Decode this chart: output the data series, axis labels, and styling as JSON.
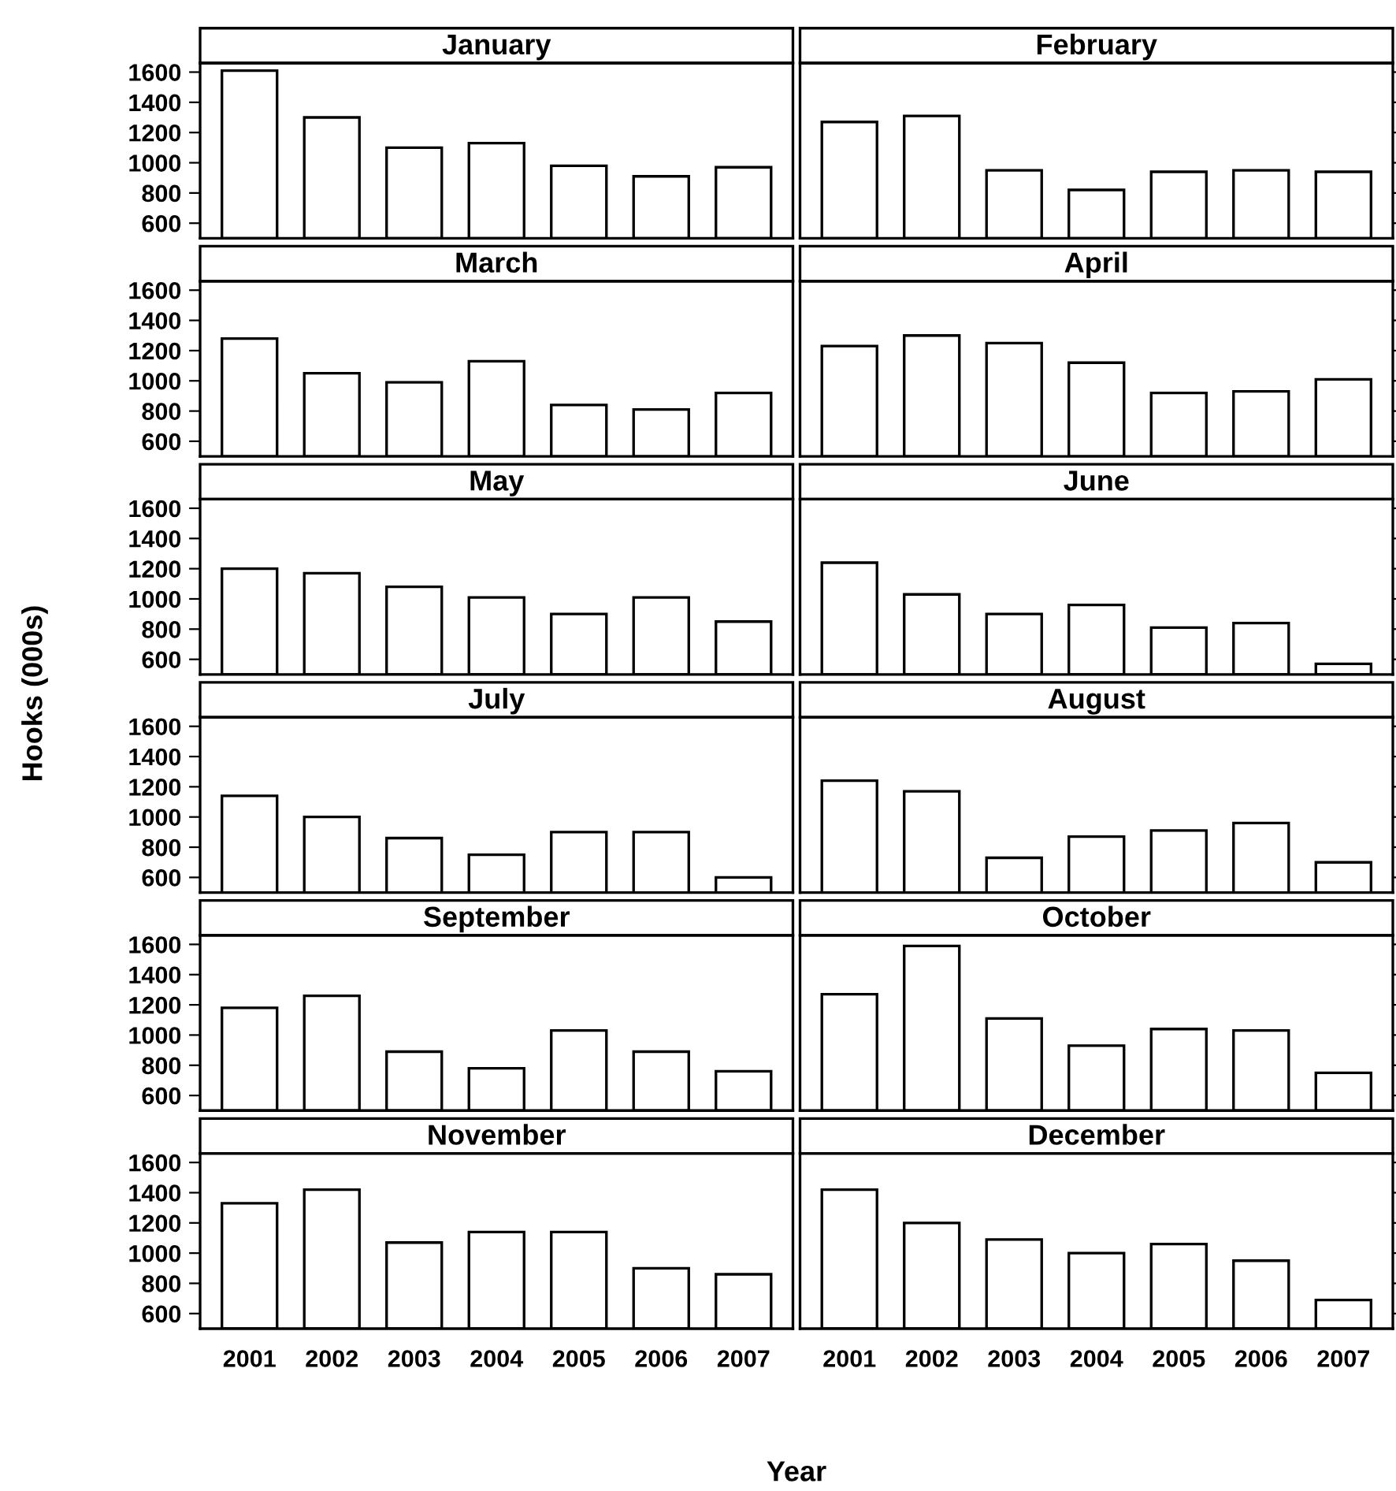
{
  "chart_data": [
    {
      "type": "bar",
      "title": "January",
      "categories": [
        "2001",
        "2002",
        "2003",
        "2004",
        "2005",
        "2006",
        "2007"
      ],
      "values": [
        1610,
        1300,
        1100,
        1130,
        980,
        910,
        970
      ],
      "color": "#ffffff",
      "ylim": [
        500,
        1660
      ],
      "yticks": [
        600,
        800,
        1000,
        1200,
        1400,
        1600
      ],
      "tick_labels": "y"
    },
    {
      "type": "bar",
      "title": "February",
      "categories": [
        "2001",
        "2002",
        "2003",
        "2004",
        "2005",
        "2006",
        "2007"
      ],
      "values": [
        1270,
        1310,
        950,
        820,
        940,
        950,
        940
      ],
      "color": "#ffffff",
      "ylim": [
        500,
        1660
      ],
      "yticks": [
        600,
        800,
        1000,
        1200,
        1400,
        1600
      ],
      "tick_labels": false
    },
    {
      "type": "bar",
      "title": "March",
      "categories": [
        "2001",
        "2002",
        "2003",
        "2004",
        "2005",
        "2006",
        "2007"
      ],
      "values": [
        1280,
        1050,
        990,
        1130,
        840,
        810,
        920
      ],
      "color": "#ffffff",
      "ylim": [
        500,
        1660
      ],
      "yticks": [
        600,
        800,
        1000,
        1200,
        1400,
        1600
      ],
      "tick_labels": "y"
    },
    {
      "type": "bar",
      "title": "April",
      "categories": [
        "2001",
        "2002",
        "2003",
        "2004",
        "2005",
        "2006",
        "2007"
      ],
      "values": [
        1230,
        1300,
        1250,
        1120,
        920,
        930,
        1010
      ],
      "color": "#ffffff",
      "ylim": [
        500,
        1660
      ],
      "yticks": [
        600,
        800,
        1000,
        1200,
        1400,
        1600
      ],
      "tick_labels": false
    },
    {
      "type": "bar",
      "title": "May",
      "ylabel": "Hooks (000s)",
      "categories": [
        "2001",
        "2002",
        "2003",
        "2004",
        "2005",
        "2006",
        "2007"
      ],
      "values": [
        1200,
        1170,
        1080,
        1010,
        900,
        1010,
        850
      ],
      "color": "#ffffff",
      "ylim": [
        500,
        1660
      ],
      "yticks": [
        600,
        800,
        1000,
        1200,
        1400,
        1600
      ],
      "tick_labels": "y"
    },
    {
      "type": "bar",
      "title": "June",
      "categories": [
        "2001",
        "2002",
        "2003",
        "2004",
        "2005",
        "2006",
        "2007"
      ],
      "values": [
        1240,
        1030,
        900,
        960,
        810,
        840,
        570
      ],
      "color": "#ffffff",
      "ylim": [
        500,
        1660
      ],
      "yticks": [
        600,
        800,
        1000,
        1200,
        1400,
        1600
      ],
      "tick_labels": false
    },
    {
      "type": "bar",
      "title": "July",
      "categories": [
        "2001",
        "2002",
        "2003",
        "2004",
        "2005",
        "2006",
        "2007"
      ],
      "values": [
        1140,
        1000,
        860,
        750,
        900,
        900,
        600
      ],
      "color": "#ffffff",
      "ylim": [
        500,
        1660
      ],
      "yticks": [
        600,
        800,
        1000,
        1200,
        1400,
        1600
      ],
      "tick_labels": "y"
    },
    {
      "type": "bar",
      "title": "August",
      "categories": [
        "2001",
        "2002",
        "2003",
        "2004",
        "2005",
        "2006",
        "2007"
      ],
      "values": [
        1240,
        1170,
        730,
        870,
        910,
        960,
        700
      ],
      "color": "#ffffff",
      "ylim": [
        500,
        1660
      ],
      "yticks": [
        600,
        800,
        1000,
        1200,
        1400,
        1600
      ],
      "tick_labels": false
    },
    {
      "type": "bar",
      "title": "September",
      "categories": [
        "2001",
        "2002",
        "2003",
        "2004",
        "2005",
        "2006",
        "2007"
      ],
      "values": [
        1180,
        1260,
        890,
        780,
        1030,
        890,
        760
      ],
      "color": "#ffffff",
      "ylim": [
        500,
        1660
      ],
      "yticks": [
        600,
        800,
        1000,
        1200,
        1400,
        1600
      ],
      "tick_labels": "y"
    },
    {
      "type": "bar",
      "title": "October",
      "categories": [
        "2001",
        "2002",
        "2003",
        "2004",
        "2005",
        "2006",
        "2007"
      ],
      "values": [
        1270,
        1590,
        1110,
        930,
        1040,
        1030,
        750
      ],
      "color": "#ffffff",
      "ylim": [
        500,
        1660
      ],
      "yticks": [
        600,
        800,
        1000,
        1200,
        1400,
        1600
      ],
      "tick_labels": false
    },
    {
      "type": "bar",
      "title": "November",
      "categories": [
        "2001",
        "2002",
        "2003",
        "2004",
        "2005",
        "2006",
        "2007"
      ],
      "values": [
        1330,
        1420,
        1070,
        1140,
        1140,
        900,
        860
      ],
      "color": "#ffffff",
      "ylim": [
        500,
        1660
      ],
      "yticks": [
        600,
        800,
        1000,
        1200,
        1400,
        1600
      ]
    },
    {
      "type": "bar",
      "title": "December",
      "xlabel": "Year",
      "categories": [
        "2001",
        "2002",
        "2003",
        "2004",
        "2005",
        "2006",
        "2007"
      ],
      "values": [
        1420,
        1200,
        1090,
        1000,
        1060,
        950,
        690
      ],
      "color": "#ffffff",
      "ylim": [
        500,
        1660
      ],
      "yticks": [
        600,
        800,
        1000,
        1200,
        1400,
        1600
      ],
      "tick_labels": "x"
    }
  ]
}
